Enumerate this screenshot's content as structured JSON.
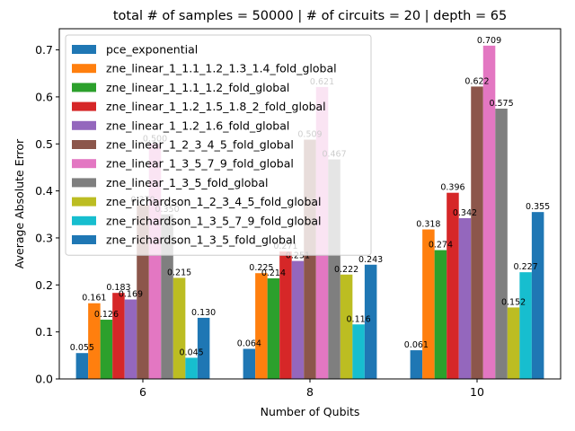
{
  "chart_data": {
    "type": "bar",
    "title": "total # of samples = 50000 | # of circuits = 20 | depth = 65",
    "xlabel": "Number of Qubits",
    "ylabel": "Average Absolute Error",
    "categories": [
      "6",
      "8",
      "10"
    ],
    "ylim": [
      0,
      0.745
    ],
    "yticks": [
      0.0,
      0.1,
      0.2,
      0.3,
      0.4,
      0.5,
      0.6,
      0.7
    ],
    "ytick_labels": [
      "0.0",
      "0.1",
      "0.2",
      "0.3",
      "0.4",
      "0.5",
      "0.6",
      "0.7"
    ],
    "grid": false,
    "legend_position": "upper-left",
    "series": [
      {
        "name": "pce_exponential",
        "color": "#1f77b4",
        "values": [
          0.055,
          0.064,
          0.061
        ],
        "labels": [
          "0.055",
          "0.064",
          "0.061"
        ]
      },
      {
        "name": "zne_linear_1_1.1_1.2_1.3_1.4_fold_global",
        "color": "#ff7f0e",
        "values": [
          0.161,
          0.225,
          0.318
        ],
        "labels": [
          "0.161",
          "0.225",
          "0.318"
        ]
      },
      {
        "name": "zne_linear_1_1.1_1.2_fold_global",
        "color": "#2ca02c",
        "values": [
          0.126,
          0.214,
          0.274
        ],
        "labels": [
          "0.126",
          "0.214",
          "0.274"
        ]
      },
      {
        "name": "zne_linear_1_1.2_1.5_1.8_2_fold_global",
        "color": "#d62728",
        "values": [
          0.183,
          0.271,
          0.396
        ],
        "labels": [
          "0.183",
          "0.271",
          "0.396"
        ]
      },
      {
        "name": "zne_linear_1_1.2_1.6_fold_global",
        "color": "#9467bd",
        "values": [
          0.169,
          0.251,
          0.342
        ],
        "labels": [
          "0.169",
          "0.251",
          "0.342"
        ]
      },
      {
        "name": "zne_linear_1_2_3_4_5_fold_global",
        "color": "#8c564b",
        "values": [
          0.37,
          0.509,
          0.622
        ],
        "labels": [
          "0.370",
          "0.509",
          "0.622"
        ]
      },
      {
        "name": "zne_linear_1_3_5_7_9_fold_global",
        "color": "#e377c2",
        "values": [
          0.5,
          0.621,
          0.709
        ],
        "labels": [
          "0.500",
          "0.621",
          "0.709"
        ]
      },
      {
        "name": "zne_linear_1_3_5_fold_global",
        "color": "#7f7f7f",
        "values": [
          0.35,
          0.467,
          0.575
        ],
        "labels": [
          "0.350",
          "0.467",
          "0.575"
        ]
      },
      {
        "name": "zne_richardson_1_2_3_4_5_fold_global",
        "color": "#bcbd22",
        "values": [
          0.215,
          0.222,
          0.152
        ],
        "labels": [
          "0.215",
          "0.222",
          "0.152"
        ]
      },
      {
        "name": "zne_richardson_1_3_5_7_9_fold_global",
        "color": "#17becf",
        "values": [
          0.045,
          0.116,
          0.227
        ],
        "labels": [
          "0.045",
          "0.116",
          "0.227"
        ]
      },
      {
        "name": "zne_richardson_1_3_5_fold_global",
        "color": "#1f77b4",
        "values": [
          0.13,
          0.243,
          0.355
        ],
        "labels": [
          "0.130",
          "0.243",
          "0.355"
        ]
      }
    ]
  }
}
